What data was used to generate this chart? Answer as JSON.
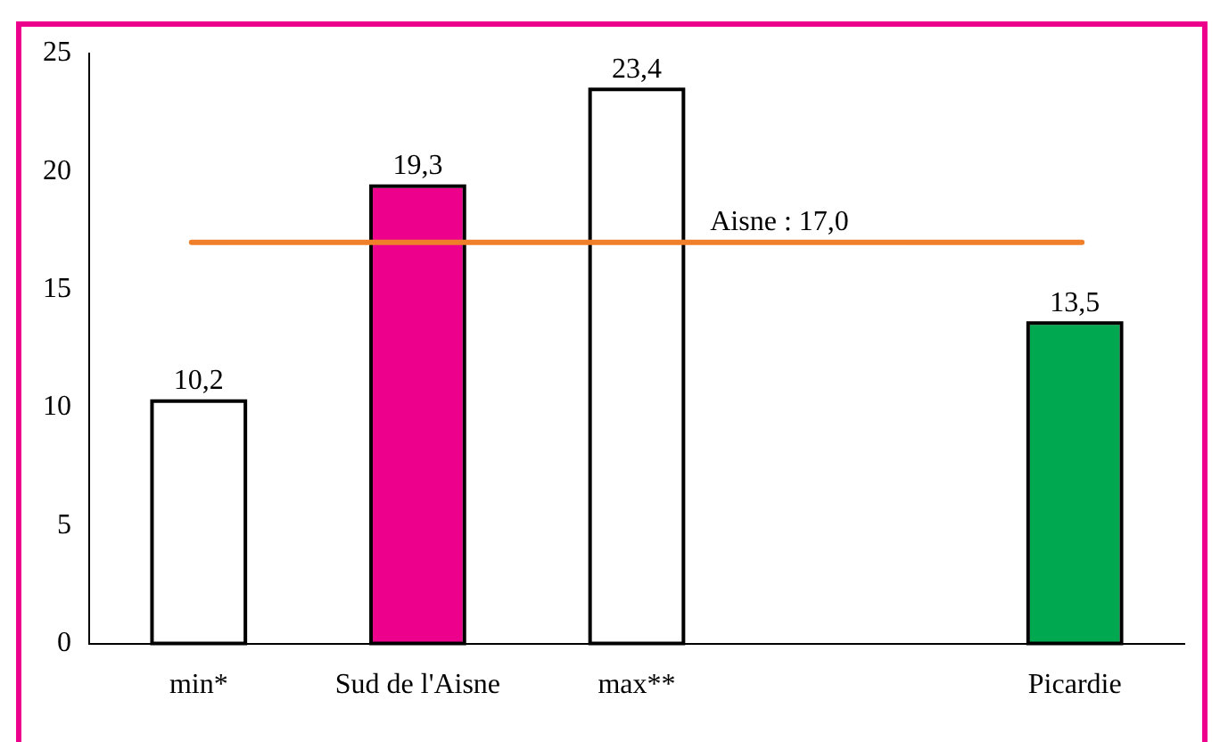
{
  "chart_data": {
    "type": "bar",
    "categories": [
      "min*",
      "Sud de l'Aisne",
      "max**",
      null,
      "Picardie"
    ],
    "values": [
      10.2,
      19.3,
      23.4,
      null,
      13.5
    ],
    "colors": [
      "#ffffff",
      "#ec008c",
      "#ffffff",
      null,
      "#00a84f"
    ],
    "value_labels": [
      "10,2",
      "19,3",
      "23,4",
      null,
      "13,5"
    ],
    "ylim": [
      0,
      25
    ],
    "yticks": [
      0,
      5,
      10,
      15,
      20,
      25
    ],
    "grid": false,
    "legend": false,
    "ref_lines": [
      {
        "axis": "y",
        "value": 17,
        "label": "Aisne : 17,0",
        "color": "#f07f2a"
      }
    ]
  }
}
